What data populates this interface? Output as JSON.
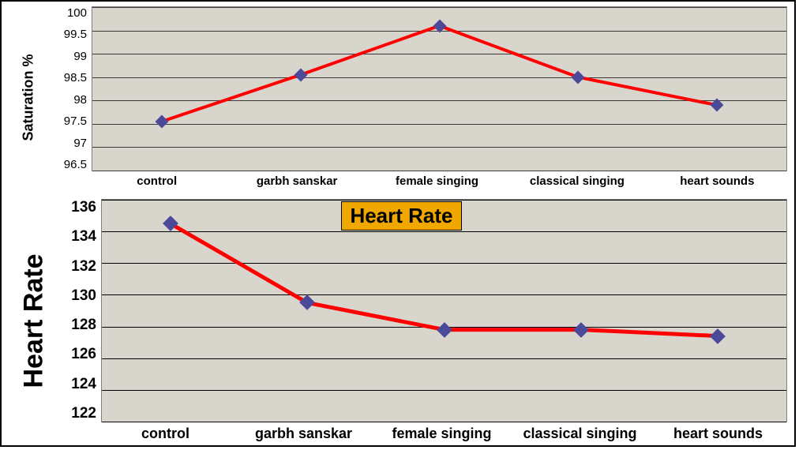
{
  "background_color": "#ffffff",
  "frame_border_color": "#000000",
  "saturation_chart": {
    "type": "line",
    "ylabel": "Saturation %",
    "ylabel_fontsize": 18,
    "categories": [
      "control",
      "garbh sanskar",
      "female singing",
      "classical singing",
      "heart sounds"
    ],
    "values": [
      97.55,
      98.55,
      99.6,
      98.5,
      97.9
    ],
    "ylim": [
      96.5,
      100
    ],
    "ytick_step": 0.5,
    "yticks": [
      "100",
      "99.5",
      "99",
      "98.5",
      "98",
      "97.5",
      "97",
      "96.5"
    ],
    "tick_fontsize": 15,
    "xtick_fontsize": 15,
    "plot_bg": "#d8d5cc",
    "grid_color": "#3a3a3a",
    "line_color": "#ff0000",
    "line_width": 4,
    "marker_color": "#4a4a99",
    "marker_size": 6,
    "border_color": "#808080"
  },
  "heartrate_chart": {
    "type": "line",
    "ylabel": "Heart Rate",
    "ylabel_fontsize": 34,
    "title": "Heart Rate",
    "title_fontsize": 26,
    "title_bg": "#f0a800",
    "categories": [
      "control",
      "garbh sanskar",
      "female singing",
      "classical singing",
      "heart sounds"
    ],
    "values": [
      134.5,
      129.5,
      127.8,
      127.8,
      127.4
    ],
    "ylim": [
      122,
      136
    ],
    "ytick_step": 2,
    "yticks": [
      "136",
      "134",
      "132",
      "130",
      "128",
      "126",
      "124",
      "122"
    ],
    "tick_fontsize": 19,
    "xtick_fontsize": 18,
    "plot_bg": "#d8d5cc",
    "grid_color": "#000000",
    "line_color": "#ff0000",
    "line_width": 5,
    "marker_color": "#4a4a99",
    "marker_size": 7,
    "border_color": "#808080"
  }
}
